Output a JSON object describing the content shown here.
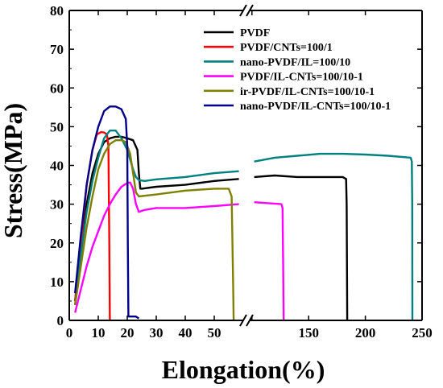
{
  "chart_data": {
    "type": "line",
    "title": "",
    "xlabel": "Elongation(%)",
    "ylabel": "Stress(MPa)",
    "x_axis": {
      "broken": true,
      "segment1": {
        "range": [
          0,
          60
        ],
        "ticks": [
          0,
          10,
          20,
          30,
          40,
          50
        ]
      },
      "segment2": {
        "range": [
          98,
          250
        ],
        "ticks": [
          100,
          150,
          200,
          250
        ],
        "tick_labels": [
          "",
          "150",
          "200",
          "250"
        ]
      }
    },
    "ylim": [
      0,
      80
    ],
    "yticks": [
      0,
      10,
      20,
      30,
      40,
      50,
      60,
      70,
      80
    ],
    "grid": false,
    "legend_position": "top-right",
    "series": [
      {
        "name": "PVDF",
        "color": "#000000",
        "points": [
          [
            2,
            5
          ],
          [
            4,
            18
          ],
          [
            6,
            30
          ],
          [
            8,
            38
          ],
          [
            10,
            43
          ],
          [
            12,
            46
          ],
          [
            14,
            47
          ],
          [
            16,
            47.4
          ],
          [
            18,
            47.4
          ],
          [
            20,
            47
          ],
          [
            22,
            46.5
          ],
          [
            23.5,
            44
          ],
          [
            24,
            38
          ],
          [
            24.5,
            34
          ],
          [
            25,
            34
          ],
          [
            30,
            34.5
          ],
          [
            40,
            35
          ],
          [
            50,
            36
          ],
          [
            58.5,
            36.5
          ],
          [
            102,
            37
          ],
          [
            120,
            37.4
          ],
          [
            140,
            37
          ],
          [
            160,
            37
          ],
          [
            180,
            37
          ],
          [
            183,
            36.5
          ],
          [
            183.5,
            30
          ],
          [
            184,
            0
          ]
        ]
      },
      {
        "name": "PVDF/CNTs=100/1",
        "color": "#ff0000",
        "points": [
          [
            2,
            5
          ],
          [
            4,
            20
          ],
          [
            6,
            35
          ],
          [
            8,
            44
          ],
          [
            9.5,
            48
          ],
          [
            11,
            48.6
          ],
          [
            12,
            48.5
          ],
          [
            13,
            48
          ],
          [
            13.5,
            45
          ],
          [
            13.8,
            20
          ],
          [
            14,
            0
          ]
        ]
      },
      {
        "name": "nano-PVDF/IL=100/10",
        "color": "#008080",
        "points": [
          [
            2,
            4
          ],
          [
            4,
            17
          ],
          [
            6,
            28
          ],
          [
            8,
            36
          ],
          [
            10,
            42
          ],
          [
            12,
            47
          ],
          [
            14,
            49
          ],
          [
            16,
            49
          ],
          [
            18,
            47
          ],
          [
            20,
            44
          ],
          [
            22,
            39
          ],
          [
            23,
            37
          ],
          [
            24,
            36.2
          ],
          [
            26,
            36
          ],
          [
            30,
            36.4
          ],
          [
            40,
            37
          ],
          [
            50,
            38
          ],
          [
            58.5,
            38.5
          ],
          [
            102,
            41
          ],
          [
            120,
            42
          ],
          [
            140,
            42.5
          ],
          [
            160,
            43
          ],
          [
            180,
            43
          ],
          [
            200,
            42.8
          ],
          [
            220,
            42.5
          ],
          [
            240,
            42
          ],
          [
            241,
            41
          ],
          [
            241.3,
            30
          ],
          [
            241.5,
            0
          ]
        ]
      },
      {
        "name": "PVDF/IL-CNTs=100/10-1",
        "color": "#ff00ff",
        "points": [
          [
            2,
            2
          ],
          [
            4,
            8
          ],
          [
            6,
            14
          ],
          [
            8,
            19
          ],
          [
            10,
            23
          ],
          [
            12,
            27
          ],
          [
            14,
            30
          ],
          [
            16,
            32.5
          ],
          [
            18,
            34.5
          ],
          [
            20,
            35.5
          ],
          [
            21,
            35.6
          ],
          [
            22,
            34
          ],
          [
            23,
            30
          ],
          [
            24,
            28
          ],
          [
            26,
            28.5
          ],
          [
            30,
            29
          ],
          [
            40,
            29
          ],
          [
            50,
            29.5
          ],
          [
            58.5,
            30
          ],
          [
            102,
            30.5
          ],
          [
            126,
            30
          ],
          [
            127,
            29
          ],
          [
            127.5,
            15
          ],
          [
            128,
            0
          ]
        ]
      },
      {
        "name": "ir-PVDF/IL-CNTs=100/10-1",
        "color": "#808000",
        "points": [
          [
            2,
            4
          ],
          [
            4,
            14
          ],
          [
            6,
            24
          ],
          [
            8,
            32
          ],
          [
            10,
            39
          ],
          [
            12,
            43
          ],
          [
            14,
            45.5
          ],
          [
            16,
            46.5
          ],
          [
            18,
            46.5
          ],
          [
            19.5,
            46
          ],
          [
            21,
            43
          ],
          [
            22,
            38
          ],
          [
            23,
            33
          ],
          [
            24,
            32
          ],
          [
            30,
            32.5
          ],
          [
            40,
            33.5
          ],
          [
            50,
            34
          ],
          [
            55,
            34
          ],
          [
            56,
            32
          ],
          [
            56.5,
            10
          ],
          [
            56.7,
            0
          ]
        ]
      },
      {
        "name": "nano-PVDF/IL-CNTs=100/10-1",
        "color": "#00008b",
        "points": [
          [
            2,
            7
          ],
          [
            4,
            22
          ],
          [
            6,
            35
          ],
          [
            8,
            44
          ],
          [
            10,
            50
          ],
          [
            12,
            54
          ],
          [
            14,
            55.2
          ],
          [
            16,
            55.2
          ],
          [
            18,
            54.5
          ],
          [
            19.5,
            52
          ],
          [
            20,
            45
          ],
          [
            20.2,
            20
          ],
          [
            20.4,
            1
          ],
          [
            23,
            1
          ],
          [
            24,
            0.5
          ]
        ]
      }
    ]
  }
}
